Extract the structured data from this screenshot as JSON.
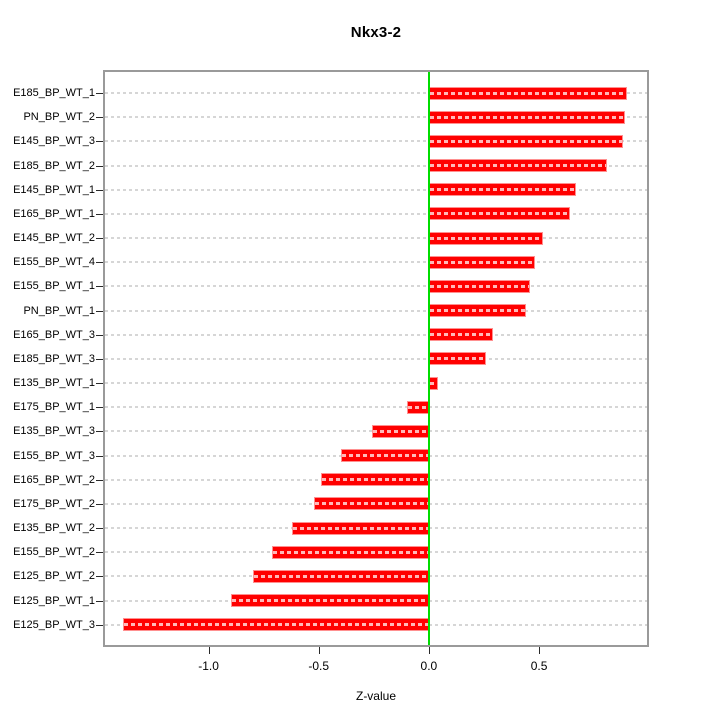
{
  "chart_data": {
    "type": "bar",
    "orientation": "horizontal",
    "title": "Nkx3-2",
    "xlabel": "Z-value",
    "ylabel": "",
    "categories": [
      "E185_BP_WT_1",
      "PN_BP_WT_2",
      "E145_BP_WT_3",
      "E185_BP_WT_2",
      "E145_BP_WT_1",
      "E165_BP_WT_1",
      "E145_BP_WT_2",
      "E155_BP_WT_4",
      "E155_BP_WT_1",
      "PN_BP_WT_1",
      "E165_BP_WT_3",
      "E185_BP_WT_3",
      "E135_BP_WT_1",
      "E175_BP_WT_1",
      "E135_BP_WT_3",
      "E155_BP_WT_3",
      "E165_BP_WT_2",
      "E175_BP_WT_2",
      "E135_BP_WT_2",
      "E155_BP_WT_2",
      "E125_BP_WT_2",
      "E125_BP_WT_1",
      "E125_BP_WT_3"
    ],
    "values": [
      0.9,
      0.89,
      0.88,
      0.81,
      0.67,
      0.64,
      0.52,
      0.48,
      0.46,
      0.44,
      0.29,
      0.26,
      0.04,
      -0.1,
      -0.26,
      -0.4,
      -0.49,
      -0.52,
      -0.62,
      -0.71,
      -0.8,
      -0.9,
      -1.39
    ],
    "xlim": [
      -1.47,
      0.99
    ],
    "xticks": [
      -1.0,
      -0.5,
      0.0,
      0.5
    ],
    "xtick_labels": [
      "-1.0",
      "-0.5",
      "0.0",
      "0.5"
    ],
    "grid": "horizontal-dashed",
    "legend": "none",
    "colors": {
      "bar": "#ff0000",
      "bar_border": "#ff9090",
      "zero_line": "#00dd00",
      "grid_line": "#d6d6d6",
      "plot_border": "#9a9a9a",
      "text": "#000000"
    }
  }
}
